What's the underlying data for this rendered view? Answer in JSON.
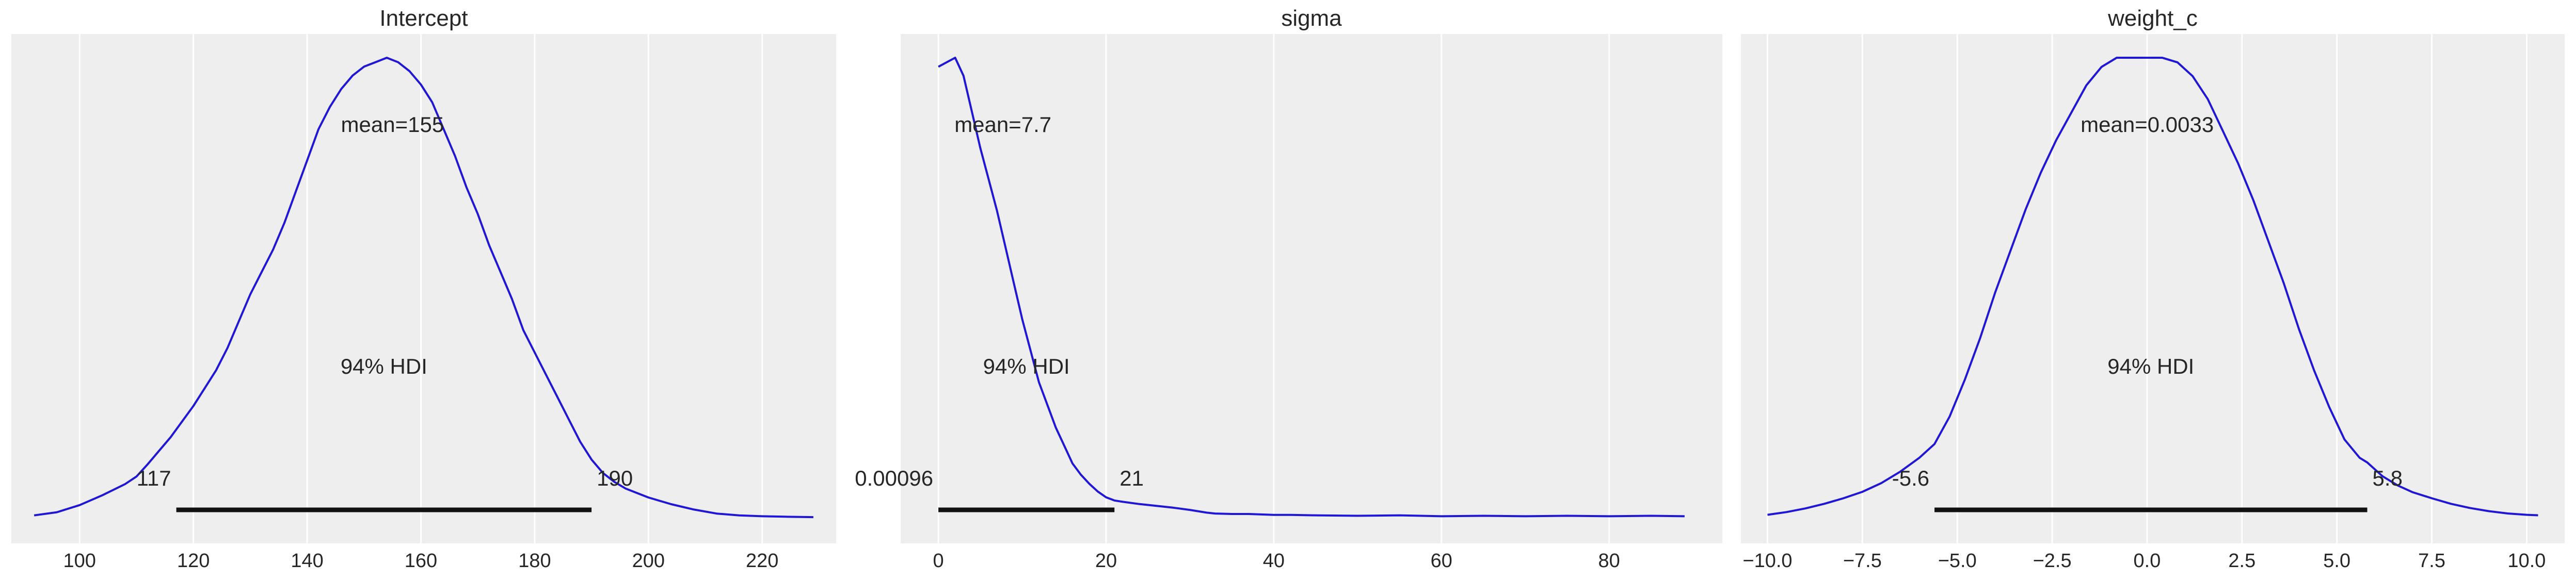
{
  "chart_data": [
    {
      "type": "area",
      "title": "Intercept",
      "xlim": [
        88,
        233
      ],
      "x_ticks": [
        100,
        120,
        140,
        160,
        180,
        200,
        220
      ],
      "x_tick_labels": [
        "100",
        "120",
        "140",
        "160",
        "180",
        "200",
        "220"
      ],
      "grid": true,
      "series_color": "#1f16d8",
      "kde": {
        "x": [
          92,
          96,
          100,
          104,
          108,
          110,
          112,
          114,
          116,
          118,
          120,
          122,
          124,
          126,
          128,
          130,
          132,
          134,
          136,
          138,
          140,
          142,
          144,
          146,
          148,
          150,
          152,
          154,
          156,
          158,
          160,
          162,
          164,
          166,
          168,
          170,
          172,
          174,
          176,
          178,
          180,
          182,
          184,
          186,
          188,
          190,
          192,
          194,
          196,
          198,
          200,
          204,
          208,
          212,
          216,
          220,
          224,
          229
        ],
        "y": [
          0.005,
          0.012,
          0.028,
          0.05,
          0.075,
          0.092,
          0.12,
          0.15,
          0.18,
          0.215,
          0.25,
          0.29,
          0.33,
          0.38,
          0.44,
          0.5,
          0.55,
          0.6,
          0.66,
          0.73,
          0.8,
          0.87,
          0.92,
          0.96,
          0.99,
          1.01,
          1.02,
          1.03,
          1.02,
          1.0,
          0.97,
          0.93,
          0.87,
          0.81,
          0.74,
          0.68,
          0.61,
          0.55,
          0.49,
          0.42,
          0.37,
          0.32,
          0.27,
          0.22,
          0.17,
          0.13,
          0.1,
          0.08,
          0.065,
          0.055,
          0.045,
          0.03,
          0.018,
          0.009,
          0.005,
          0.003,
          0.002,
          0.001
        ]
      },
      "mean_label": "mean=155",
      "mean": 155,
      "hdi_label": "94% HDI",
      "hdi": [
        117,
        190
      ],
      "hdi_labels": [
        "117",
        "190"
      ]
    },
    {
      "type": "area",
      "title": "sigma",
      "xlim": [
        -4.5,
        93.5
      ],
      "x_ticks": [
        0,
        20,
        40,
        60,
        80
      ],
      "x_tick_labels": [
        "0",
        "20",
        "40",
        "60",
        "80"
      ],
      "grid": true,
      "series_color": "#1f16d8",
      "kde": {
        "x": [
          0,
          1,
          2,
          3,
          4,
          5,
          6,
          7,
          8,
          9,
          10,
          11,
          12,
          13,
          14,
          15,
          16,
          17,
          18,
          19,
          20,
          21,
          22,
          24,
          26,
          28,
          30,
          32,
          33,
          35,
          37,
          40,
          42,
          45,
          50,
          55,
          60,
          65,
          70,
          75,
          80,
          85,
          89
        ],
        "y": [
          1.0,
          1.01,
          1.02,
          0.98,
          0.9,
          0.82,
          0.75,
          0.68,
          0.6,
          0.52,
          0.44,
          0.37,
          0.3,
          0.25,
          0.2,
          0.16,
          0.12,
          0.095,
          0.075,
          0.058,
          0.045,
          0.038,
          0.035,
          0.03,
          0.026,
          0.022,
          0.017,
          0.011,
          0.009,
          0.008,
          0.008,
          0.006,
          0.006,
          0.005,
          0.004,
          0.005,
          0.003,
          0.004,
          0.003,
          0.004,
          0.003,
          0.004,
          0.003
        ]
      },
      "mean_label": "mean=7.7",
      "mean": 7.7,
      "hdi_label": "94% HDI",
      "hdi": [
        0.00096,
        21
      ],
      "hdi_labels": [
        "0.00096",
        "21"
      ]
    },
    {
      "type": "area",
      "title": "weight_c",
      "xlim": [
        -10.7,
        11
      ],
      "x_ticks": [
        -10,
        -7.5,
        -5,
        -2.5,
        0,
        2.5,
        5,
        7.5,
        10
      ],
      "x_tick_labels": [
        "−10.0",
        "−7.5",
        "−5.0",
        "−2.5",
        "0.0",
        "2.5",
        "5.0",
        "7.5",
        "10.0"
      ],
      "grid": true,
      "series_color": "#1f16d8",
      "kde": {
        "x": [
          -10.0,
          -9.5,
          -9.0,
          -8.5,
          -8.0,
          -7.5,
          -7.0,
          -6.5,
          -6.0,
          -5.6,
          -5.2,
          -4.8,
          -4.4,
          -4.0,
          -3.6,
          -3.2,
          -2.8,
          -2.4,
          -2.0,
          -1.6,
          -1.2,
          -0.8,
          -0.4,
          0.0,
          0.4,
          0.8,
          1.2,
          1.6,
          2.0,
          2.4,
          2.8,
          3.2,
          3.6,
          4.0,
          4.4,
          4.8,
          5.2,
          5.6,
          5.8,
          6.2,
          6.6,
          7.0,
          7.5,
          8.0,
          8.5,
          9.0,
          9.5,
          10.0,
          10.3
        ],
        "y": [
          0.006,
          0.012,
          0.02,
          0.03,
          0.042,
          0.056,
          0.075,
          0.1,
          0.13,
          0.16,
          0.22,
          0.3,
          0.39,
          0.49,
          0.58,
          0.67,
          0.75,
          0.82,
          0.88,
          0.94,
          0.98,
          1.0,
          1.0,
          1.0,
          1.0,
          0.99,
          0.96,
          0.91,
          0.84,
          0.77,
          0.69,
          0.6,
          0.51,
          0.41,
          0.32,
          0.24,
          0.17,
          0.13,
          0.12,
          0.09,
          0.07,
          0.055,
          0.042,
          0.03,
          0.021,
          0.014,
          0.009,
          0.006,
          0.005
        ]
      },
      "mean_label": "mean=0.0033",
      "mean": 0.0033,
      "hdi_label": "94% HDI",
      "hdi": [
        -5.6,
        5.8
      ],
      "hdi_labels": [
        "-5.6",
        "5.8"
      ]
    }
  ]
}
